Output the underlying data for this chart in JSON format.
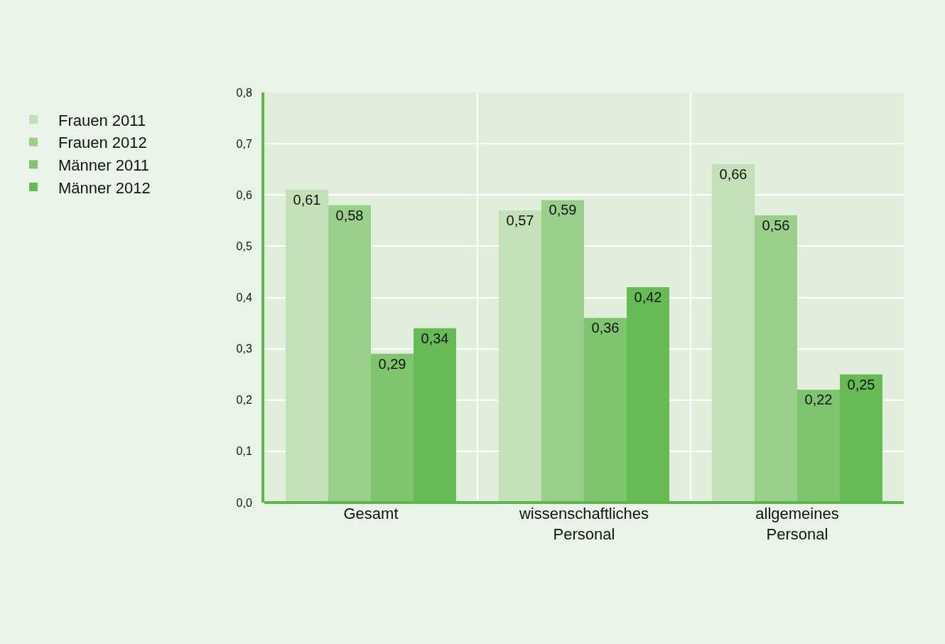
{
  "chart_data": {
    "type": "bar",
    "categories": [
      "Gesamt",
      "wissenschaftliches\nPersonal",
      "allgemeines\nPersonal"
    ],
    "series": [
      {
        "name": "Frauen 2011",
        "color": "#c4e0b8",
        "values": [
          0.61,
          0.57,
          0.66
        ],
        "value_labels": [
          "0,61",
          "0,57",
          "0,66"
        ]
      },
      {
        "name": "Frauen 2012",
        "color": "#99cf8a",
        "values": [
          0.58,
          0.59,
          0.56
        ],
        "value_labels": [
          "0,58",
          "0,59",
          "0,56"
        ]
      },
      {
        "name": "Männer 2011",
        "color": "#7fc46e",
        "values": [
          0.29,
          0.36,
          0.22
        ],
        "value_labels": [
          "0,29",
          "0,36",
          "0,22"
        ]
      },
      {
        "name": "Männer 2012",
        "color": "#66bb55",
        "values": [
          0.34,
          0.42,
          0.25
        ],
        "value_labels": [
          "0,34",
          "0,42",
          "0,25"
        ]
      }
    ],
    "ylim": [
      0,
      0.8
    ],
    "yticks": [
      {
        "value": 0,
        "label": "0,0"
      },
      {
        "value": 0.1,
        "label": "0,1"
      },
      {
        "value": 0.2,
        "label": "0,2"
      },
      {
        "value": 0.3,
        "label": "0,3"
      },
      {
        "value": 0.4,
        "label": "0,4"
      },
      {
        "value": 0.5,
        "label": "0,5"
      },
      {
        "value": 0.6,
        "label": "0,6"
      },
      {
        "value": 0.7,
        "label": "0,7"
      },
      {
        "value": 0.8,
        "label": "0,8"
      }
    ],
    "grid": true,
    "legend": "left"
  }
}
